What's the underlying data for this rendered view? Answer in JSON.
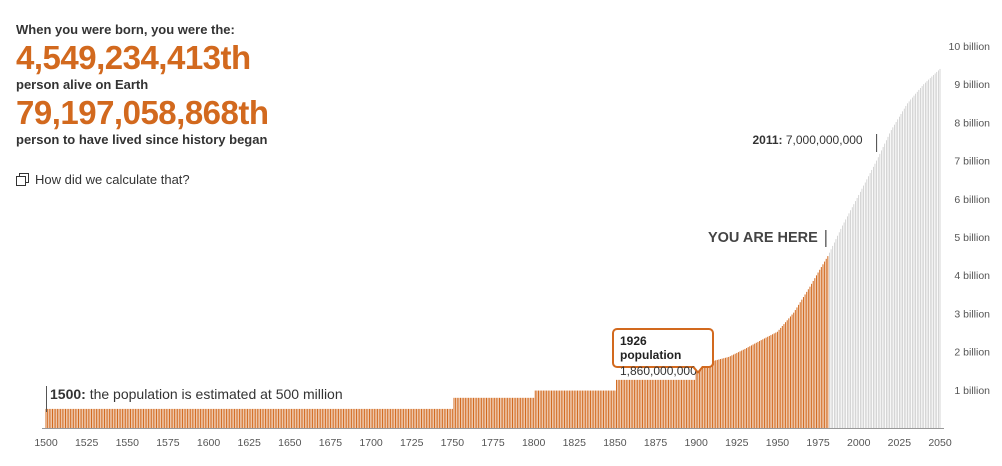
{
  "info": {
    "intro": "When you were born, you were the:",
    "born_rank": "4,549,234,413th",
    "born_sub": "person alive on Earth",
    "lived_rank": "79,197,058,868th",
    "lived_sub": "person to have lived since history began",
    "calc_link": "How did we calculate that?"
  },
  "annotations": {
    "start_year": "1500:",
    "start_text": "the population is estimated at 500 million",
    "you_are_here": "YOU ARE HERE",
    "milestone_year": "2011:",
    "milestone_value": "7,000,000,000"
  },
  "tooltip": {
    "title": "1926 population",
    "value": "1,860,000,000"
  },
  "colors": {
    "past": "#d2691e",
    "future": "#c4c4c4",
    "accent": "#d2691e"
  },
  "chart_data": {
    "type": "bar",
    "xlim": [
      1500,
      2050
    ],
    "ylim": [
      0,
      10
    ],
    "x_ticks": [
      1500,
      1525,
      1550,
      1575,
      1600,
      1625,
      1650,
      1675,
      1700,
      1725,
      1750,
      1775,
      1800,
      1825,
      1850,
      1875,
      1900,
      1925,
      1950,
      1975,
      2000,
      2025,
      2050
    ],
    "y_ticks": [
      {
        "value": 1,
        "label": "1 billion"
      },
      {
        "value": 2,
        "label": "2 billion"
      },
      {
        "value": 3,
        "label": "3 billion"
      },
      {
        "value": 4,
        "label": "4 billion"
      },
      {
        "value": 5,
        "label": "5 billion"
      },
      {
        "value": 6,
        "label": "6 billion"
      },
      {
        "value": 7,
        "label": "7 billion"
      },
      {
        "value": 8,
        "label": "8 billion"
      },
      {
        "value": 9,
        "label": "9 billion"
      },
      {
        "value": 10,
        "label": "10 billion"
      }
    ],
    "birth_year": 1981,
    "population_billions": [
      [
        1500,
        0.5
      ],
      [
        1750,
        0.79
      ],
      [
        1800,
        0.98
      ],
      [
        1850,
        1.26
      ],
      [
        1900,
        1.65
      ],
      [
        1910,
        1.75
      ],
      [
        1920,
        1.86
      ],
      [
        1930,
        2.07
      ],
      [
        1940,
        2.3
      ],
      [
        1950,
        2.52
      ],
      [
        1960,
        3.02
      ],
      [
        1970,
        3.7
      ],
      [
        1975,
        4.07
      ],
      [
        1981,
        4.5
      ],
      [
        1990,
        5.3
      ],
      [
        2000,
        6.1
      ],
      [
        2011,
        7.0
      ],
      [
        2020,
        7.8
      ],
      [
        2030,
        8.5
      ],
      [
        2040,
        9.0
      ],
      [
        2050,
        9.4
      ]
    ]
  }
}
